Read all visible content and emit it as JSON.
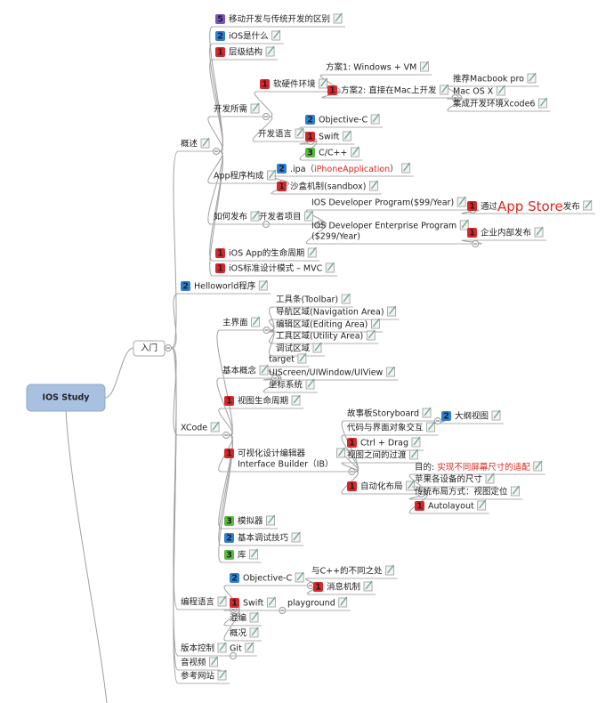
{
  "root": {
    "label": "IOS Study",
    "children": [
      {
        "label": "入门",
        "children": [
          {
            "label": "概述",
            "children": [
              {
                "label": "移动开发与传统开发的区别",
                "priority": 5
              },
              {
                "label": "iOS是什么",
                "priority": 2
              },
              {
                "label": "层级结构",
                "priority": 1
              },
              {
                "label": "开发所需",
                "children": [
                  {
                    "label": "软硬件环境",
                    "priority": 1,
                    "children": [
                      {
                        "label": "方案1: Windows + VM"
                      },
                      {
                        "label": "方案2: 直接在Mac上开发",
                        "priority": 1,
                        "children": [
                          {
                            "label": "推荐Macbook pro"
                          },
                          {
                            "label": "Mac OS X"
                          },
                          {
                            "label": "集成开发环境Xcode6"
                          }
                        ]
                      }
                    ]
                  },
                  {
                    "label": "开发语言",
                    "children": [
                      {
                        "label": "Objective-C",
                        "priority": 2
                      },
                      {
                        "label": "Swift",
                        "priority": 1
                      },
                      {
                        "label": "C/C++",
                        "priority": 3
                      }
                    ]
                  }
                ]
              },
              {
                "label": "App程序构成",
                "children": [
                  {
                    "label_parts": [
                      {
                        "text": ".ipa（"
                      },
                      {
                        "text": "iPhoneApplication",
                        "color": "#e0261c"
                      },
                      {
                        "text": "）"
                      }
                    ],
                    "priority": 2
                  },
                  {
                    "label": "沙盒机制(sandbox)",
                    "priority": 1
                  }
                ]
              },
              {
                "label": "如何发布",
                "children": [
                  {
                    "label": "开发者项目",
                    "children": [
                      {
                        "label": "IOS Developer Program($99/Year)",
                        "children": [
                          {
                            "label_parts": [
                              {
                                "text": "通过"
                              },
                              {
                                "text": "App Store",
                                "color": "#e0261c"
                              },
                              {
                                "text": "发布"
                              }
                            ],
                            "priority": 1
                          }
                        ]
                      },
                      {
                        "label_lines": [
                          "IOS Developer Enterprise Program",
                          "($299/Year)"
                        ],
                        "children": [
                          {
                            "label": "企业内部发布",
                            "priority": 1
                          }
                        ]
                      }
                    ]
                  }
                ]
              },
              {
                "label": "iOS App的生命周期",
                "priority": 1
              },
              {
                "label": "iOS标准设计模式 – MVC",
                "priority": 1
              }
            ]
          },
          {
            "label": "Helloworld程序",
            "priority": 2
          },
          {
            "label": "XCode",
            "children": [
              {
                "label": "主界面",
                "children": [
                  {
                    "label": "工具条(Toolbar)"
                  },
                  {
                    "label": "导航区域(Navigation Area)"
                  },
                  {
                    "label": "编辑区域(Editing Area)"
                  },
                  {
                    "label": "工具区域(Utility Area)"
                  },
                  {
                    "label": "调试区域"
                  }
                ]
              },
              {
                "label": "基本概念",
                "children": [
                  {
                    "label": "target"
                  },
                  {
                    "label": "UIScreen/UIWindow/UIView"
                  },
                  {
                    "label": "坐标系统"
                  }
                ]
              },
              {
                "label": "视图生命周期",
                "priority": 1
              },
              {
                "label_lines": [
                  "可视化设计编辑器",
                  "Interface Builder（IB）"
                ],
                "priority": 1,
                "children": [
                  {
                    "label": "故事板Storyboard",
                    "children": [
                      {
                        "label": "大纲视图",
                        "priority": 2
                      }
                    ]
                  },
                  {
                    "label": "代码与界面对象交互"
                  },
                  {
                    "label": "Ctrl + Drag",
                    "priority": 1
                  },
                  {
                    "label": "视图之间的过渡"
                  },
                  {
                    "label": "自动化布局",
                    "priority": 1,
                    "children": [
                      {
                        "label_parts": [
                          {
                            "text": "目的: "
                          },
                          {
                            "text": "实现不同屏幕尺寸的适配",
                            "color": "#e0261c"
                          }
                        ]
                      },
                      {
                        "label": "苹果各设备的尺寸"
                      },
                      {
                        "label": "传统布局方式：视图定位"
                      },
                      {
                        "label": "Autolayout",
                        "priority": 1
                      }
                    ]
                  }
                ]
              },
              {
                "label": "模拟器",
                "priority": 3
              },
              {
                "label": "基本调试技巧",
                "priority": 2
              },
              {
                "label": "库",
                "priority": 3
              }
            ]
          },
          {
            "label": "编程语言",
            "children": [
              {
                "label": "Objective-C",
                "priority": 2,
                "children": [
                  {
                    "label": "与C++的不同之处"
                  },
                  {
                    "label": "消息机制",
                    "priority": 1
                  }
                ]
              },
              {
                "label": "Swift",
                "priority": 1,
                "children": [
                  {
                    "label": "playground"
                  }
                ]
              },
              {
                "label": "混编"
              },
              {
                "label": "概况"
              }
            ]
          },
          {
            "label": "版本控制",
            "children": [
              {
                "label": "Git"
              }
            ]
          },
          {
            "label": "音视频"
          },
          {
            "label": "参考网站"
          }
        ]
      }
    ]
  }
}
